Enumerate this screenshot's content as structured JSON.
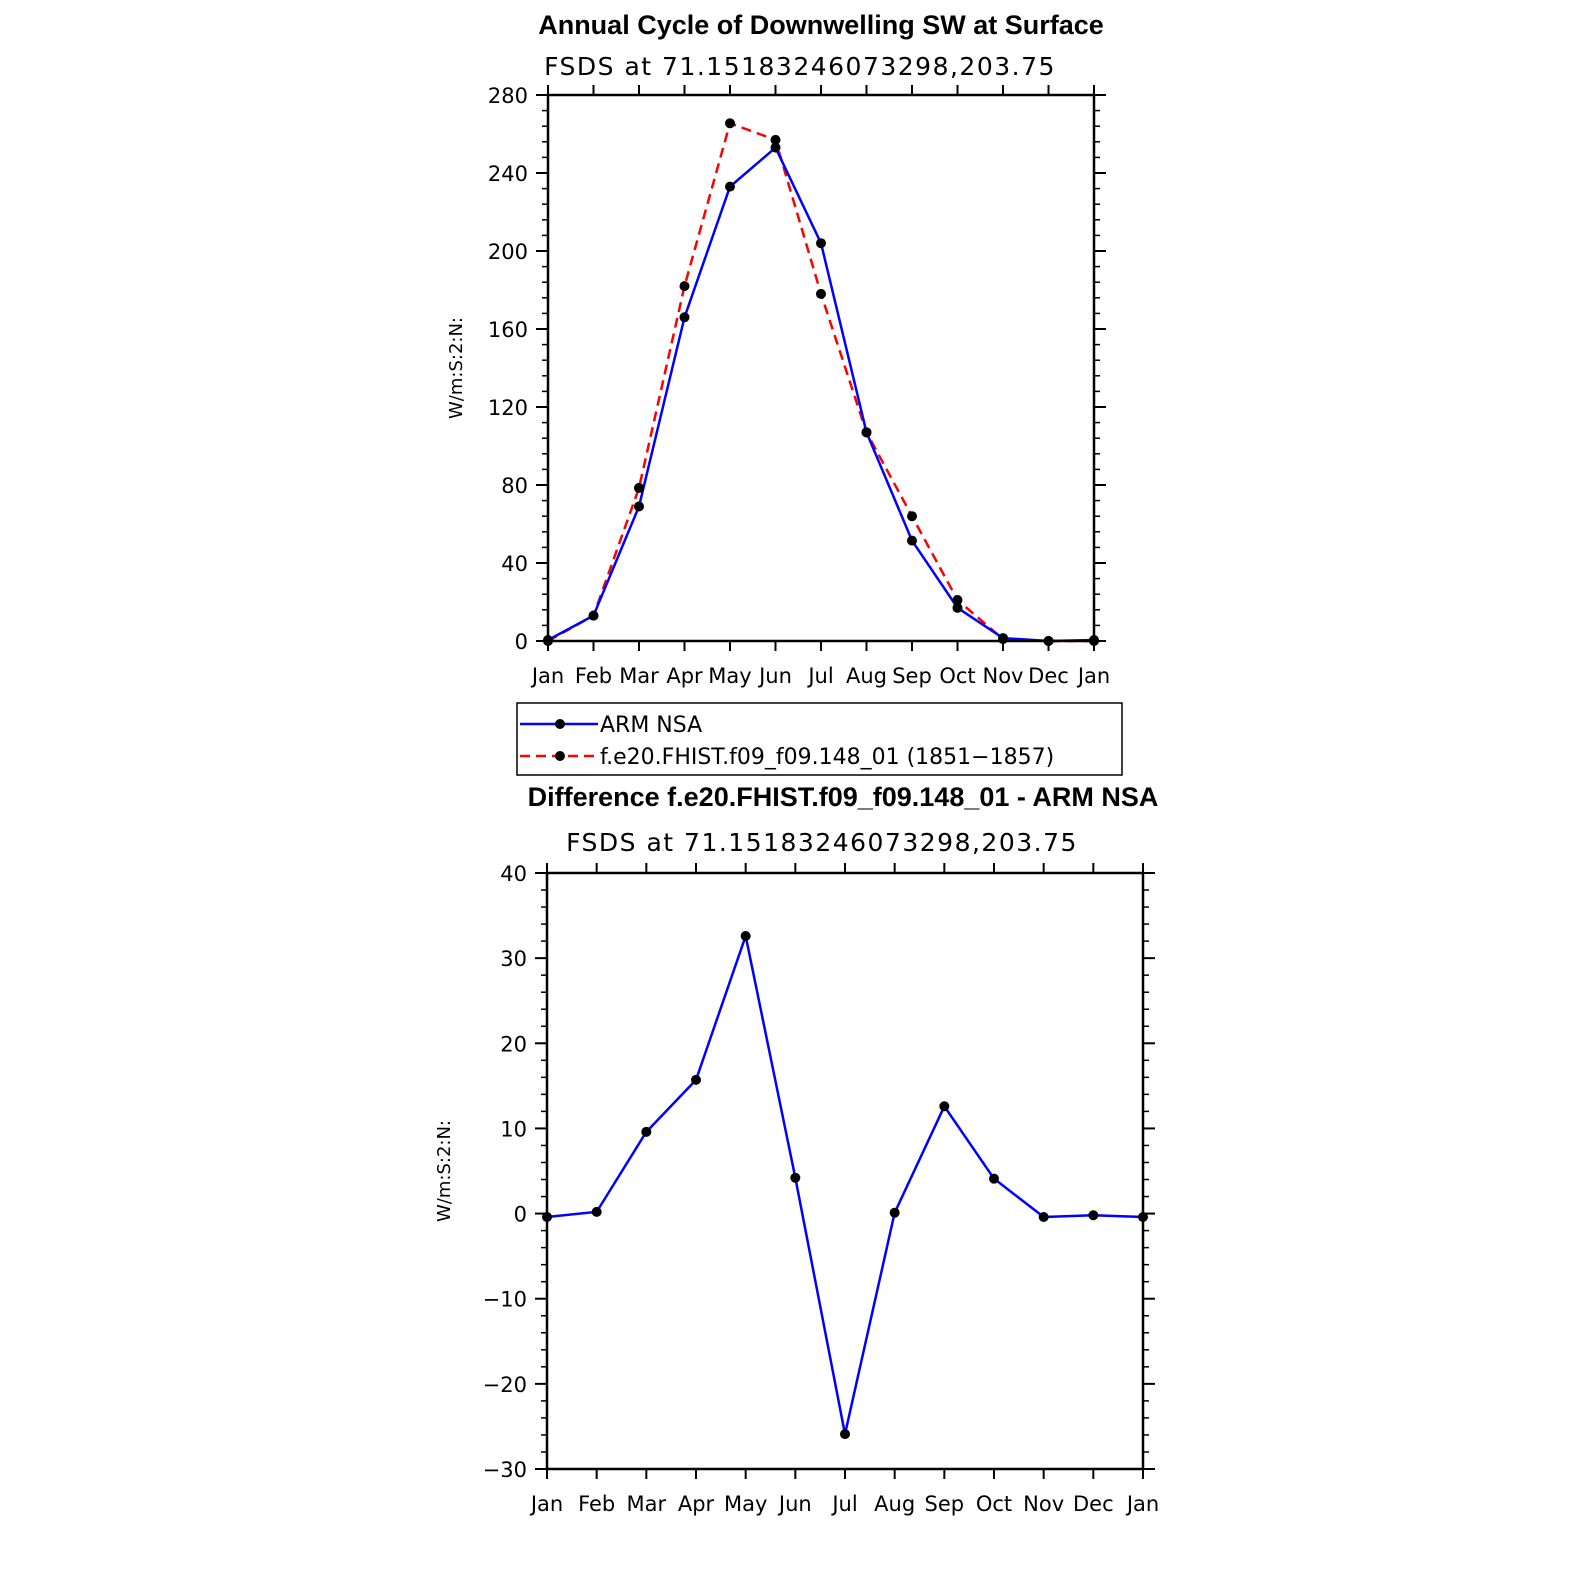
{
  "chart_data": [
    {
      "type": "line",
      "title": "Annual Cycle of Downwelling SW at Surface",
      "subtitle": "FSDS at 71.15183246073298,203.75",
      "ylabel": "W/m:S:2:N:",
      "xlabel": "",
      "categories": [
        "Jan",
        "Feb",
        "Mar",
        "Apr",
        "May",
        "Jun",
        "Jul",
        "Aug",
        "Sep",
        "Oct",
        "Nov",
        "Dec",
        "Jan"
      ],
      "ylim": [
        0,
        280
      ],
      "yticks": [
        "0",
        "40",
        "80",
        "120",
        "160",
        "200",
        "240",
        "280"
      ],
      "grid": false,
      "legend_position": "below",
      "series": [
        {
          "name": "ARM NSA",
          "color": "#0000ff",
          "dash": "solid",
          "values": [
            0.5,
            13,
            69,
            166,
            233,
            253,
            204,
            107,
            51.5,
            17,
            1.5,
            0,
            0.5
          ]
        },
        {
          "name": "f.e20.FHIST.f09_f09.148_01 (1851−1857)",
          "color": "#ff0000",
          "dash": "dashed",
          "values": [
            0,
            13,
            78.5,
            182,
            265.5,
            257,
            178,
            107,
            64,
            21,
            1,
            0,
            0
          ]
        }
      ]
    },
    {
      "type": "line",
      "title": "Difference f.e20.FHIST.f09_f09.148_01 - ARM NSA",
      "subtitle": "FSDS at 71.15183246073298,203.75",
      "ylabel": "W/m:S:2:N:",
      "xlabel": "",
      "categories": [
        "Jan",
        "Feb",
        "Mar",
        "Apr",
        "May",
        "Jun",
        "Jul",
        "Aug",
        "Sep",
        "Oct",
        "Nov",
        "Dec",
        "Jan"
      ],
      "ylim": [
        -30,
        40
      ],
      "yticks": [
        "−30",
        "−20",
        "−10",
        "0",
        "10",
        "20",
        "30",
        "40"
      ],
      "grid": false,
      "series": [
        {
          "name": "",
          "color": "#0000ff",
          "dash": "solid",
          "values": [
            -0.4,
            0.2,
            9.6,
            15.7,
            32.6,
            4.2,
            -25.9,
            0.1,
            12.6,
            4.1,
            -0.4,
            -0.2,
            -0.4
          ]
        }
      ]
    }
  ]
}
